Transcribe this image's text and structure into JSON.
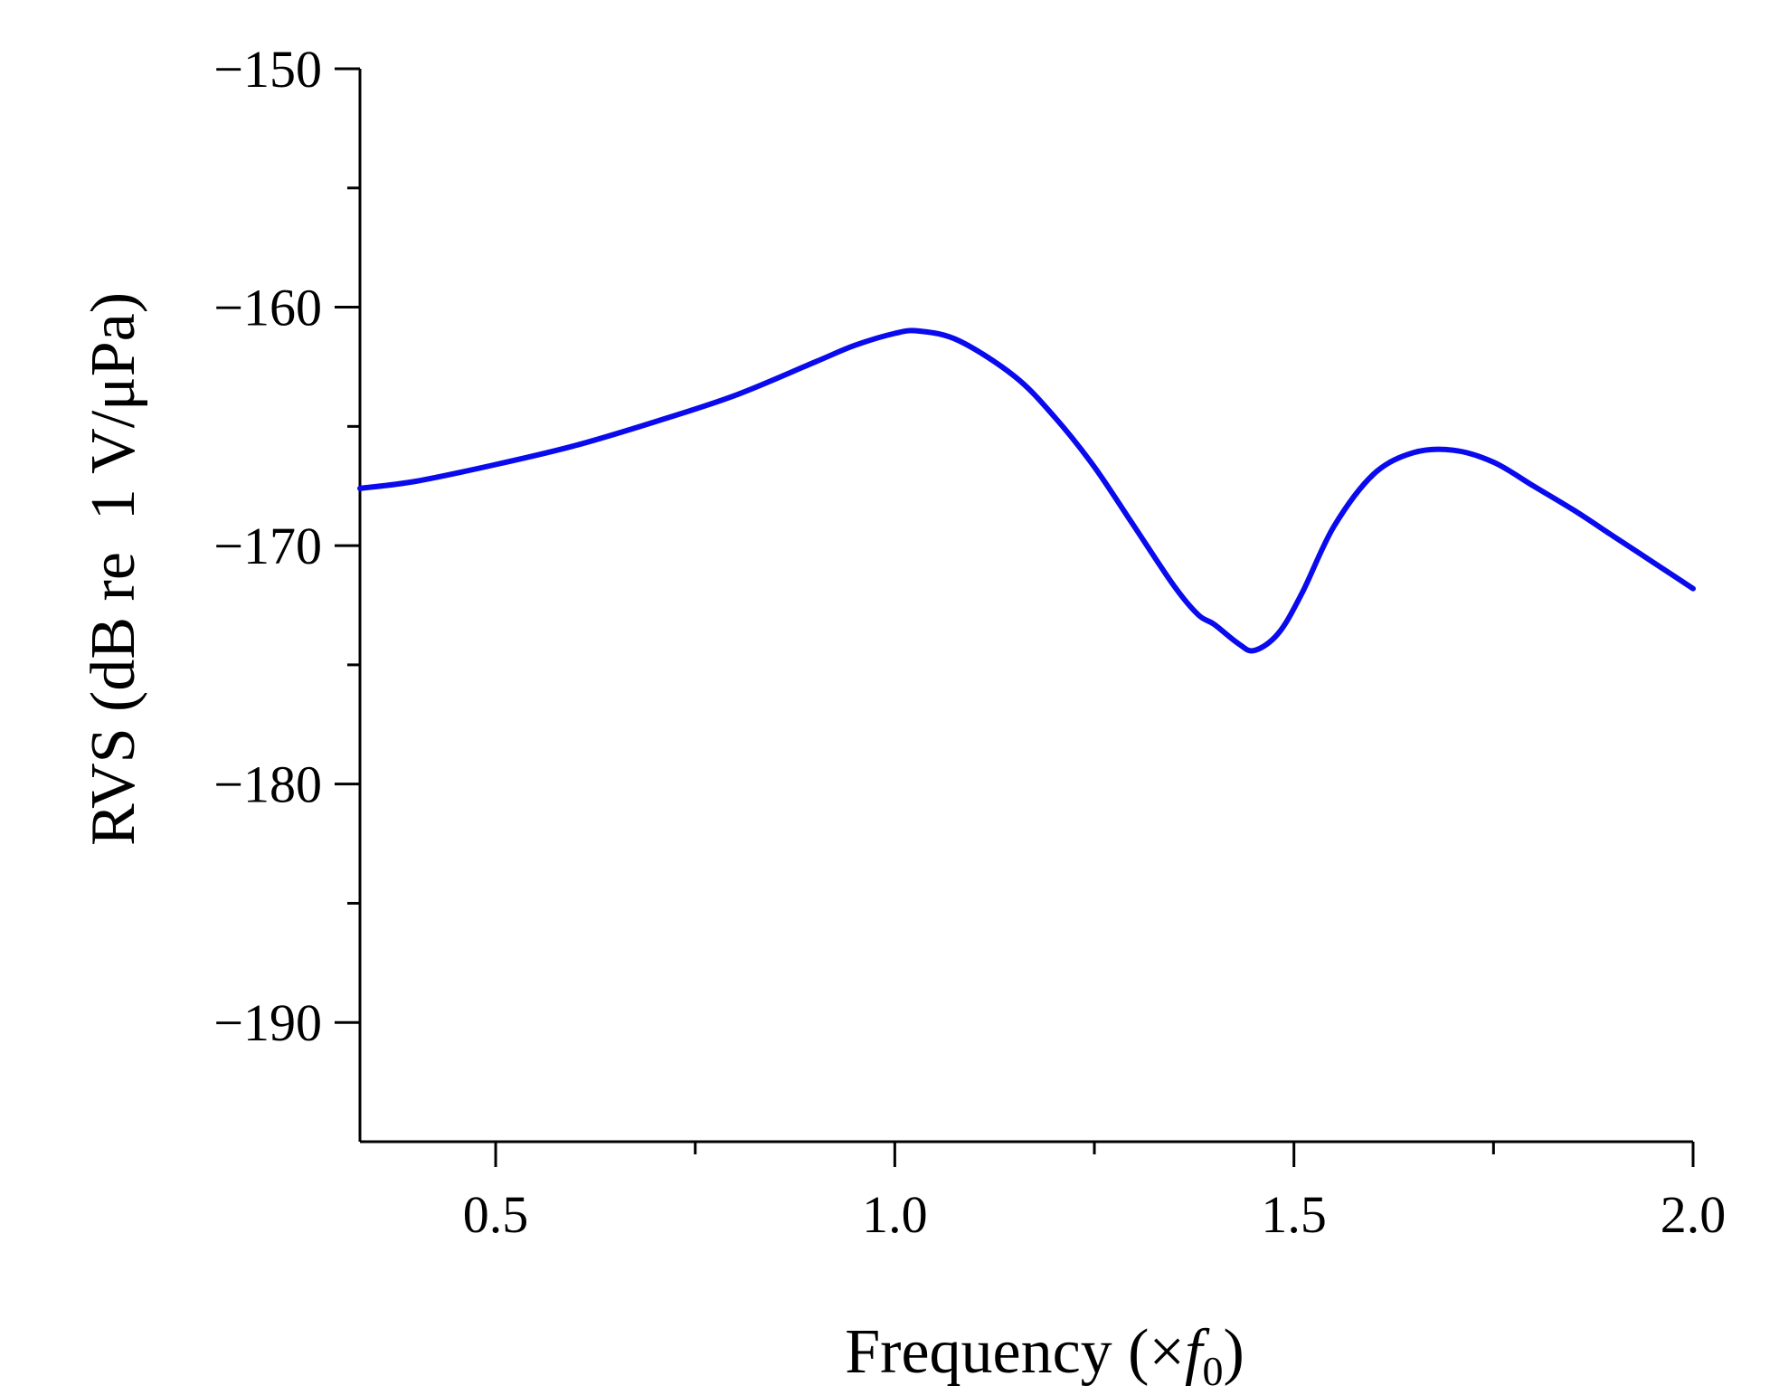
{
  "chart_data": {
    "type": "line",
    "title": "",
    "xlabel": {
      "main": "Frequency (×",
      "var": "f",
      "sub": "0",
      "close": ")"
    },
    "ylabel": "RVS (dB re  1 V/μPa)",
    "xlim": [
      0.33,
      2.0
    ],
    "ylim": [
      -195,
      -150
    ],
    "xticks": [
      {
        "value": 0.5,
        "label": "0.5"
      },
      {
        "value": 1.0,
        "label": "1.0"
      },
      {
        "value": 1.5,
        "label": "1.5"
      },
      {
        "value": 2.0,
        "label": "2.0"
      }
    ],
    "xminor": [
      0.75,
      1.25,
      1.75
    ],
    "yticks": [
      {
        "value": -150,
        "label": "−150"
      },
      {
        "value": -160,
        "label": "−160"
      },
      {
        "value": -170,
        "label": "−170"
      },
      {
        "value": -180,
        "label": "−180"
      },
      {
        "value": -190,
        "label": "−190"
      }
    ],
    "yminor": [
      -155,
      -165,
      -175,
      -185
    ],
    "grid": false,
    "series": [
      {
        "color": "#0a0aee",
        "x": [
          0.33,
          0.4,
          0.5,
          0.6,
          0.7,
          0.8,
          0.9,
          0.95,
          1.0,
          1.03,
          1.08,
          1.15,
          1.2,
          1.25,
          1.3,
          1.35,
          1.38,
          1.4,
          1.43,
          1.45,
          1.48,
          1.51,
          1.55,
          1.6,
          1.65,
          1.7,
          1.75,
          1.8,
          1.85,
          1.9,
          1.95,
          2.0
        ],
        "y": [
          -167.6,
          -167.3,
          -166.6,
          -165.8,
          -164.8,
          -163.7,
          -162.3,
          -161.6,
          -161.1,
          -161.0,
          -161.4,
          -162.9,
          -164.6,
          -166.7,
          -169.2,
          -171.7,
          -172.9,
          -173.3,
          -174.1,
          -174.4,
          -173.7,
          -172.0,
          -169.2,
          -167.0,
          -166.1,
          -166.0,
          -166.5,
          -167.5,
          -168.5,
          -169.6,
          -170.7,
          -171.8
        ]
      }
    ]
  }
}
